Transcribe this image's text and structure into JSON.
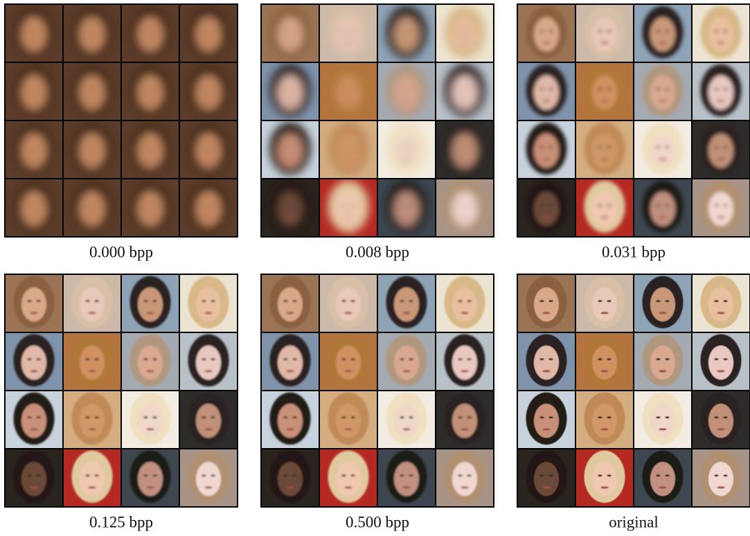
{
  "panels": [
    {
      "caption": "0.000 bpp"
    },
    {
      "caption": "0.008 bpp"
    },
    {
      "caption": "0.031 bpp"
    },
    {
      "caption": "0.125 bpp"
    },
    {
      "caption": "0.500 bpp"
    },
    {
      "caption": "original"
    }
  ]
}
